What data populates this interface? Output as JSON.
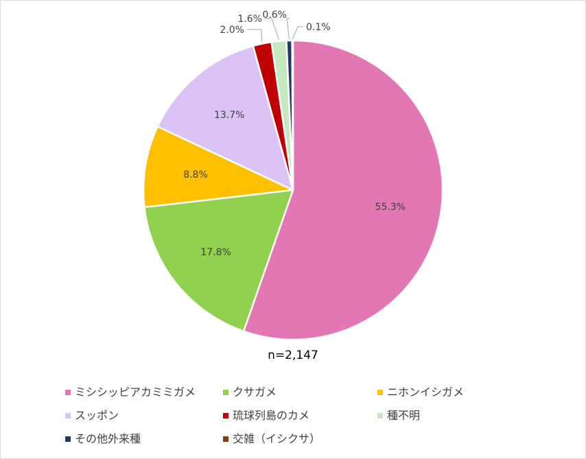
{
  "chart_data": {
    "type": "pie",
    "title": "",
    "note": "n=2,147",
    "categories": [
      "ミシシッピアカミミガメ",
      "クサガメ",
      "ニホンイシガメ",
      "スッポン",
      "琉球列島のカメ",
      "種不明",
      "その他外来種",
      "交雑（イシクサ）"
    ],
    "values": [
      55.3,
      17.8,
      8.8,
      13.7,
      2.0,
      1.6,
      0.6,
      0.1
    ],
    "data_labels": [
      "55.3%",
      "17.8%",
      "8.8%",
      "13.7%",
      "2.0%",
      "1.6%",
      "0.6%",
      "0.1%"
    ],
    "colors": [
      "#E377B4",
      "#92D050",
      "#FFC000",
      "#D9C3F5",
      "#C00000",
      "#C6E8C0",
      "#1F3864",
      "#843C0C"
    ],
    "legend_position": "bottom"
  }
}
